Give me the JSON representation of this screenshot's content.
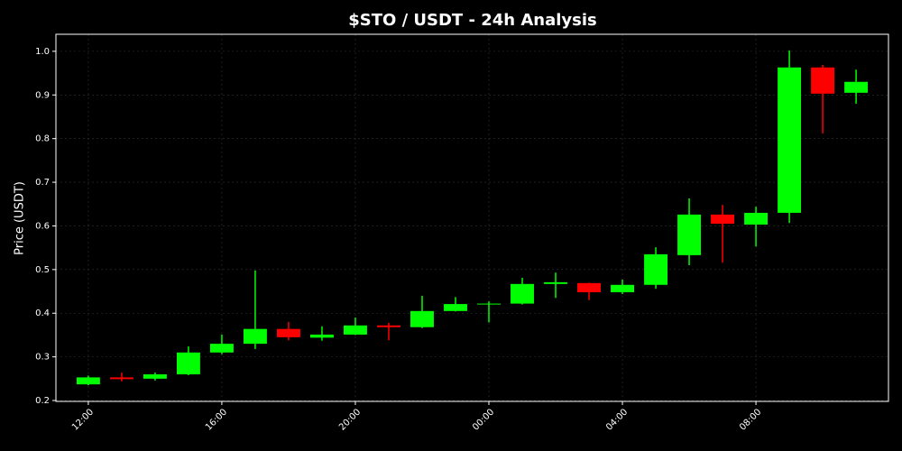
{
  "chart_data": {
    "type": "candlestick",
    "title": "$STO / USDT - 24h Analysis",
    "y_label": "Price (USDT)",
    "x": [
      12,
      13,
      14,
      15,
      16,
      17,
      18,
      19,
      20,
      21,
      22,
      23,
      24,
      25,
      26,
      27,
      28,
      29,
      30,
      31,
      32,
      33,
      34,
      35
    ],
    "open": [
      0.237,
      0.253,
      0.25,
      0.26,
      0.31,
      0.33,
      0.364,
      0.344,
      0.351,
      0.372,
      0.368,
      0.405,
      0.42,
      0.422,
      0.467,
      0.469,
      0.448,
      0.465,
      0.533,
      0.626,
      0.603,
      0.63,
      0.963,
      0.905
    ],
    "high": [
      0.257,
      0.264,
      0.264,
      0.324,
      0.351,
      0.498,
      0.38,
      0.37,
      0.39,
      0.378,
      0.44,
      0.437,
      0.427,
      0.481,
      0.493,
      0.47,
      0.477,
      0.551,
      0.663,
      0.648,
      0.644,
      1.002,
      0.969,
      0.958
    ],
    "low": [
      0.235,
      0.244,
      0.246,
      0.258,
      0.306,
      0.318,
      0.338,
      0.337,
      0.35,
      0.338,
      0.366,
      0.404,
      0.379,
      0.42,
      0.435,
      0.43,
      0.444,
      0.456,
      0.51,
      0.516,
      0.553,
      0.607,
      0.812,
      0.88
    ],
    "close": [
      0.253,
      0.249,
      0.26,
      0.31,
      0.33,
      0.364,
      0.345,
      0.351,
      0.372,
      0.368,
      0.405,
      0.421,
      0.422,
      0.467,
      0.471,
      0.448,
      0.465,
      0.535,
      0.626,
      0.605,
      0.63,
      0.963,
      0.903,
      0.93
    ],
    "up_color": "#00ff00",
    "down_color": "#ff0000",
    "xlim": [
      11.03,
      35.97
    ],
    "xticks": [
      {
        "value": 12,
        "label": "12:00"
      },
      {
        "value": 16,
        "label": "16:00"
      },
      {
        "value": 20,
        "label": "20:00"
      },
      {
        "value": 24,
        "label": "00:00"
      },
      {
        "value": 28,
        "label": "04:00"
      },
      {
        "value": 32,
        "label": "08:00"
      }
    ],
    "ylim": [
      0.198,
      1.039
    ],
    "yticks": [
      0.2,
      0.3,
      0.4,
      0.5,
      0.6,
      0.7,
      0.8,
      0.9,
      {
        "value": 1,
        "label": "1.0"
      }
    ],
    "grid": true
  }
}
